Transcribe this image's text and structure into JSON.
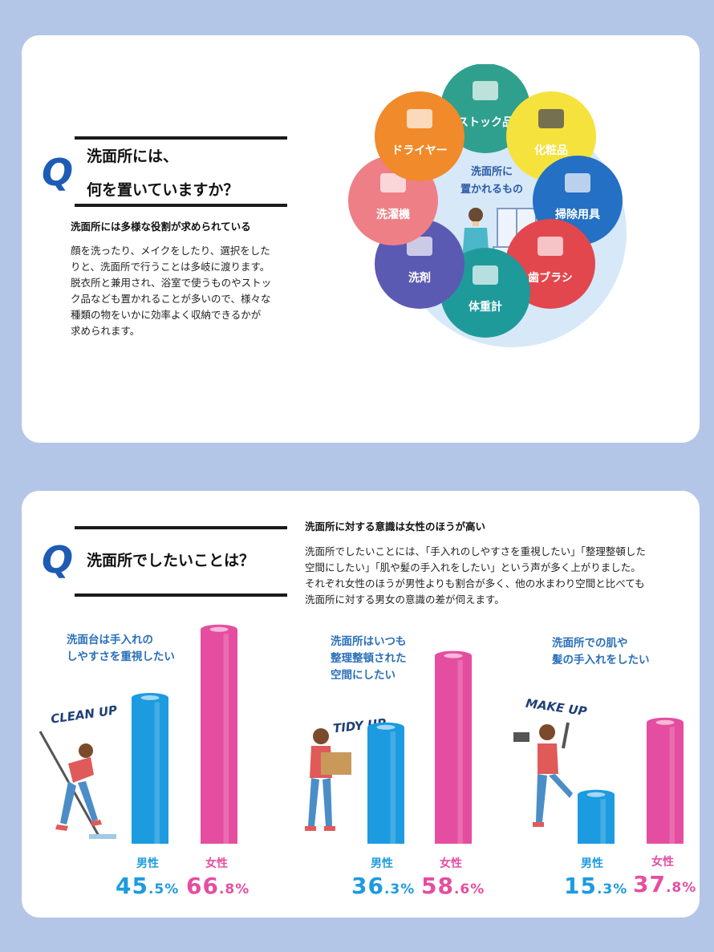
{
  "section1": {
    "q": "Q",
    "title_line1": "洗面所には、",
    "title_line2": "何を置いていますか？",
    "subtitle": "洗面所には多様な役割が求められている",
    "body": [
      "顔を洗ったり、メイクをしたり、選択をした",
      "りと、洗面所で行うことは多岐に渡ります。",
      "脱衣所と兼用され、浴室で使うものやストッ",
      "ク品なども置かれることが多いので、様々な",
      "種類の物をいかに効率よく収納できるかが",
      "求められます。"
    ],
    "center_label": [
      "洗面所に",
      "置かれるもの"
    ],
    "items": [
      {
        "label": "ストック品",
        "color": "#2fa08e",
        "icon": "stack-icon"
      },
      {
        "label": "化粧品",
        "color": "#f5e23c",
        "icon": "cosmetics-icon"
      },
      {
        "label": "掃除用具",
        "color": "#2370c4",
        "icon": "cleaning-icon"
      },
      {
        "label": "歯ブラシ",
        "color": "#e2474d",
        "icon": "toothbrush-icon"
      },
      {
        "label": "体重計",
        "color": "#1f9a9a",
        "icon": "scale-icon"
      },
      {
        "label": "洗剤",
        "color": "#5b5ab3",
        "icon": "spray-icon"
      },
      {
        "label": "洗濯機",
        "color": "#ee7f87",
        "icon": "washer-icon"
      },
      {
        "label": "ドライヤー",
        "color": "#f18a2a",
        "icon": "dryer-icon"
      }
    ]
  },
  "section2": {
    "q": "Q",
    "title": "洗面所でしたいことは？",
    "subtitle": "洗面所に対する意識は女性のほうが高い",
    "body": [
      "洗面所でしたいことには、「手入れのしやすさを重視したい」「整理整頓した",
      "空間にしたい」「肌や髪の手入れをしたい」という声が多く上がりました。",
      "それぞれ女性のほうが男性よりも割合が多く、他の水まわり空間と比べても",
      "洗面所に対する男女の意識の差が伺えます。"
    ]
  },
  "chart_data": {
    "type": "bar",
    "categories": [
      "洗面台は手入れのしやすさを重視したい",
      "洗面所はいつも整理整頓された空間にしたい",
      "洗面所での肌や髪の手入れをしたい"
    ],
    "category_lines": [
      [
        "洗面台は手入れの",
        "しやすさを重視したい"
      ],
      [
        "洗面所はいつも",
        "整理整頓された",
        "空間にしたい"
      ],
      [
        "洗面所での肌や",
        "髪の手入れをしたい"
      ]
    ],
    "words": [
      "CLEAN UP",
      "TIDY UP",
      "MAKE UP"
    ],
    "series": [
      {
        "name": "男性",
        "values": [
          45.5,
          36.3,
          15.3
        ],
        "color": "#1c9be0"
      },
      {
        "name": "女性",
        "values": [
          66.8,
          58.6,
          37.8
        ],
        "color": "#e54ea0"
      }
    ],
    "pct_parts": [
      [
        [
          "45",
          ".5%"
        ],
        [
          "66",
          ".8%"
        ]
      ],
      [
        [
          "36",
          ".3%"
        ],
        [
          "58",
          ".6%"
        ]
      ],
      [
        [
          "15",
          ".3%"
        ],
        [
          "37",
          ".8%"
        ]
      ]
    ],
    "unit": "%"
  }
}
